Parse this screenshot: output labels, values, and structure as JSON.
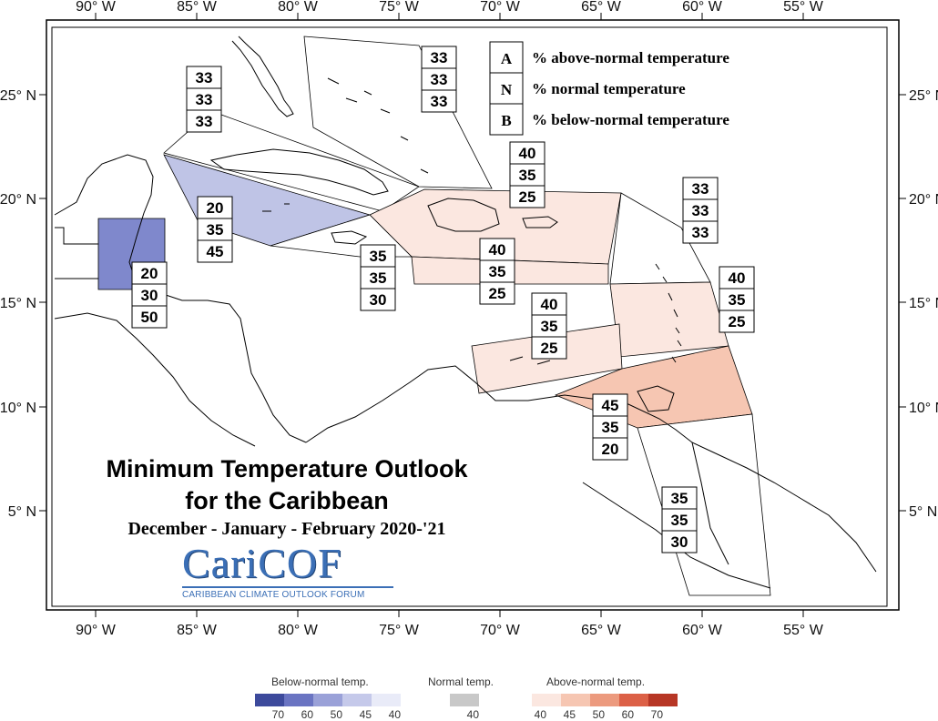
{
  "map": {
    "axes": {
      "x_ticks": [
        "90° W",
        "85° W",
        "80° W",
        "75° W",
        "70° W",
        "65° W",
        "60° W",
        "55° W"
      ],
      "y_ticks": [
        "25° N",
        "20° N",
        "15° N",
        "10° N",
        "5° N"
      ]
    },
    "key": {
      "rows": [
        {
          "letter": "A",
          "text": "% above-normal temperature"
        },
        {
          "letter": "N",
          "text": "% normal temperature"
        },
        {
          "letter": "B",
          "text": "% below-normal temperature"
        }
      ]
    },
    "regions": [
      {
        "id": "florida-bahamas-west",
        "values": [
          "33",
          "33",
          "33"
        ],
        "fill": "#ffffff"
      },
      {
        "id": "bahamas-east",
        "values": [
          "33",
          "33",
          "33"
        ],
        "fill": "#ffffff"
      },
      {
        "id": "hispaniola-puerto-rico",
        "values": [
          "40",
          "35",
          "25"
        ],
        "fill": "#fbe7e0"
      },
      {
        "id": "cayman-cuba-south",
        "values": [
          "20",
          "35",
          "45"
        ],
        "fill": "#bfc4e6"
      },
      {
        "id": "belize-yucatan",
        "values": [
          "20",
          "30",
          "50"
        ],
        "fill": "#7f88cc"
      },
      {
        "id": "jamaica",
        "values": [
          "35",
          "35",
          "30"
        ],
        "fill": "#ffffff"
      },
      {
        "id": "caribbean-central",
        "values": [
          "40",
          "35",
          "25"
        ],
        "fill": "#fbe7e0"
      },
      {
        "id": "leeward-north",
        "values": [
          "33",
          "33",
          "33"
        ],
        "fill": "#ffffff"
      },
      {
        "id": "windward-islands",
        "values": [
          "40",
          "35",
          "25"
        ],
        "fill": "#fbe7e0"
      },
      {
        "id": "abc-islands",
        "values": [
          "40",
          "35",
          "25"
        ],
        "fill": "#fbe7e0"
      },
      {
        "id": "trinidad-tobago",
        "values": [
          "45",
          "35",
          "20"
        ],
        "fill": "#f6c6b2"
      },
      {
        "id": "guianas",
        "values": [
          "35",
          "35",
          "30"
        ],
        "fill": "#ffffff"
      }
    ],
    "title": {
      "line1": "Minimum Temperature Outlook",
      "line2": "for the Caribbean",
      "season": "December - January - February 2020-'21"
    },
    "logo": {
      "word": "CariCOF",
      "tagline": "CARIBBEAN CLIMATE OUTLOOK FORUM"
    }
  },
  "legend": {
    "below": {
      "title": "Below-normal temp.",
      "colors": [
        "#3d4a9c",
        "#6a74c2",
        "#9aa1d8",
        "#c5c9ea",
        "#e9ebf8"
      ],
      "labels": [
        "70",
        "60",
        "50",
        "45",
        "40"
      ]
    },
    "normal": {
      "title": "Normal temp.",
      "colors": [
        "#c8c8c8"
      ],
      "labels": [
        "40"
      ]
    },
    "above": {
      "title": "Above-normal temp.",
      "colors": [
        "#fbe7e0",
        "#f6c6b2",
        "#ec9a7e",
        "#dc6046",
        "#b73625"
      ],
      "labels": [
        "40",
        "45",
        "50",
        "60",
        "70"
      ]
    }
  }
}
